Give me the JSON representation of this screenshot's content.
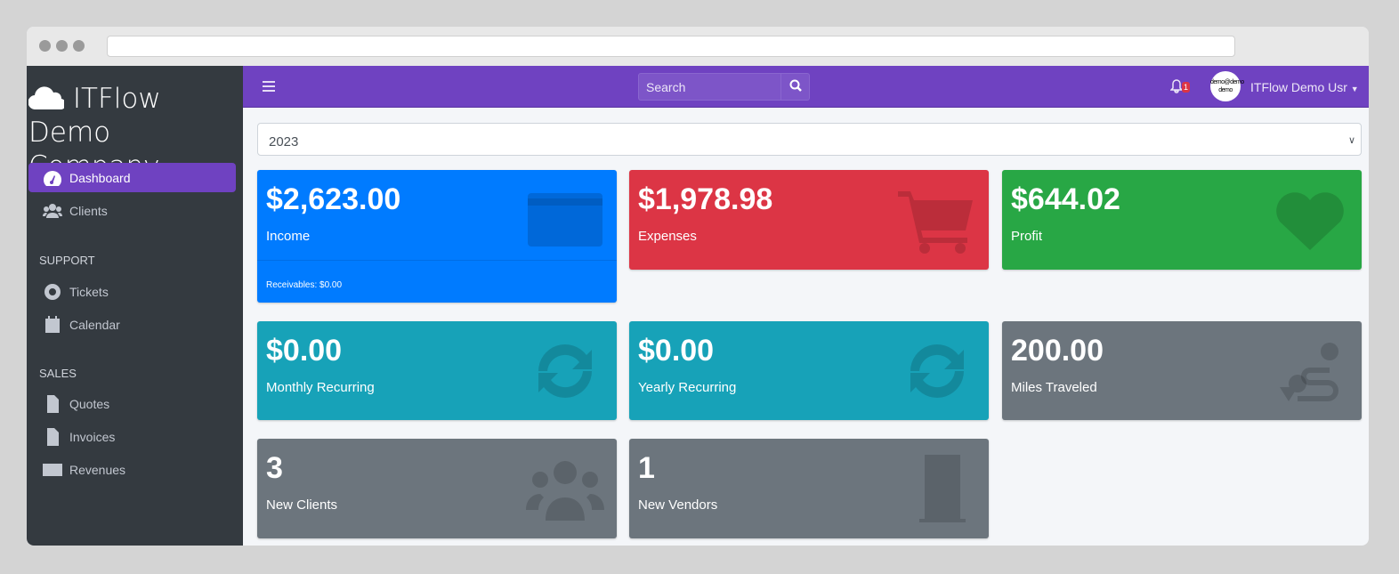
{
  "sidebar": {
    "brand": "ITFlow Demo Company",
    "items": [
      {
        "label": "Dashboard",
        "icon": "tachometer-icon"
      },
      {
        "label": "Clients",
        "icon": "users-icon"
      }
    ],
    "support_header": "SUPPORT",
    "support": [
      {
        "label": "Tickets",
        "icon": "life-ring-icon"
      },
      {
        "label": "Calendar",
        "icon": "calendar-icon"
      }
    ],
    "sales_header": "SALES",
    "sales": [
      {
        "label": "Quotes",
        "icon": "file-icon"
      },
      {
        "label": "Invoices",
        "icon": "invoice-icon"
      },
      {
        "label": "Revenues",
        "icon": "credit-card-icon"
      }
    ]
  },
  "topbar": {
    "search_placeholder": "Search",
    "notification_count": "1",
    "avatar_text": "demo@demo demo",
    "user_name": "ITFlow Demo Usr"
  },
  "year_select": "2023",
  "cards": [
    {
      "value": "$2,623.00",
      "label": "Income",
      "footer": "Receivables: $0.00",
      "color": "#007bff",
      "icon": "credit-card-icon"
    },
    {
      "value": "$1,978.98",
      "label": "Expenses",
      "color": "#dc3545",
      "icon": "shopping-cart-icon"
    },
    {
      "value": "$644.02",
      "label": "Profit",
      "color": "#28a745",
      "icon": "heart-icon"
    },
    {
      "value": "$0.00",
      "label": "Monthly Recurring",
      "color": "#17a2b8",
      "icon": "sync-icon"
    },
    {
      "value": "$0.00",
      "label": "Yearly Recurring",
      "color": "#17a2b8",
      "icon": "sync-icon"
    },
    {
      "value": "200.00",
      "label": "Miles Traveled",
      "color": "#6c757d",
      "icon": "route-icon"
    },
    {
      "value": "3",
      "label": "New Clients",
      "color": "#6c757d",
      "icon": "users-icon"
    },
    {
      "value": "1",
      "label": "New Vendors",
      "color": "#6c757d",
      "icon": "building-icon"
    }
  ]
}
